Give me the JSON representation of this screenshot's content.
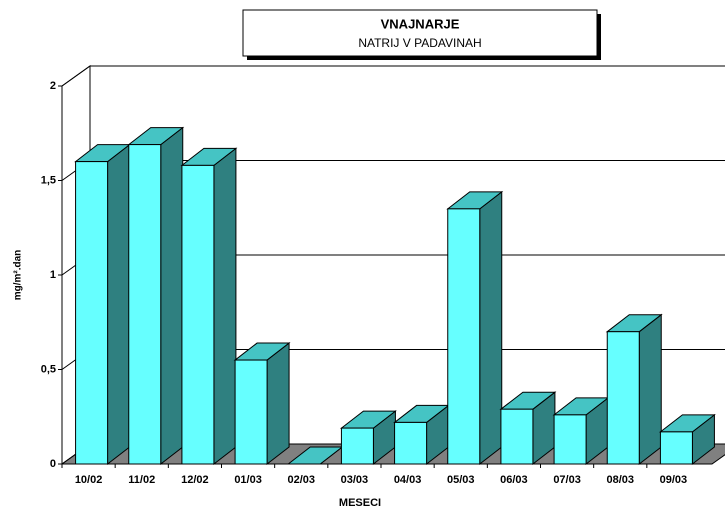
{
  "chart_data": {
    "type": "bar3d",
    "title": "VNAJNARJE",
    "subtitle": "NATRIJ V PADAVINAH",
    "x_label": "MESECI",
    "y_label": "mg/m².dan",
    "categories": [
      "10/02",
      "11/02",
      "12/02",
      "01/03",
      "02/03",
      "03/03",
      "04/03",
      "05/03",
      "06/03",
      "07/03",
      "08/03",
      "09/03"
    ],
    "values": [
      1.6,
      1.69,
      1.58,
      0.55,
      0,
      0.19,
      0.22,
      1.35,
      0.29,
      0.26,
      0.7,
      0.17
    ],
    "color": "#66ffff",
    "side_color": "#2f8080",
    "top_color": "#45c4c4",
    "ylim": [
      0,
      2
    ],
    "yticks": [
      0,
      {
        "value": 0.5,
        "label": "0,5"
      },
      1,
      {
        "value": 1.5,
        "label": "1,5"
      },
      2
    ],
    "grid": true
  }
}
